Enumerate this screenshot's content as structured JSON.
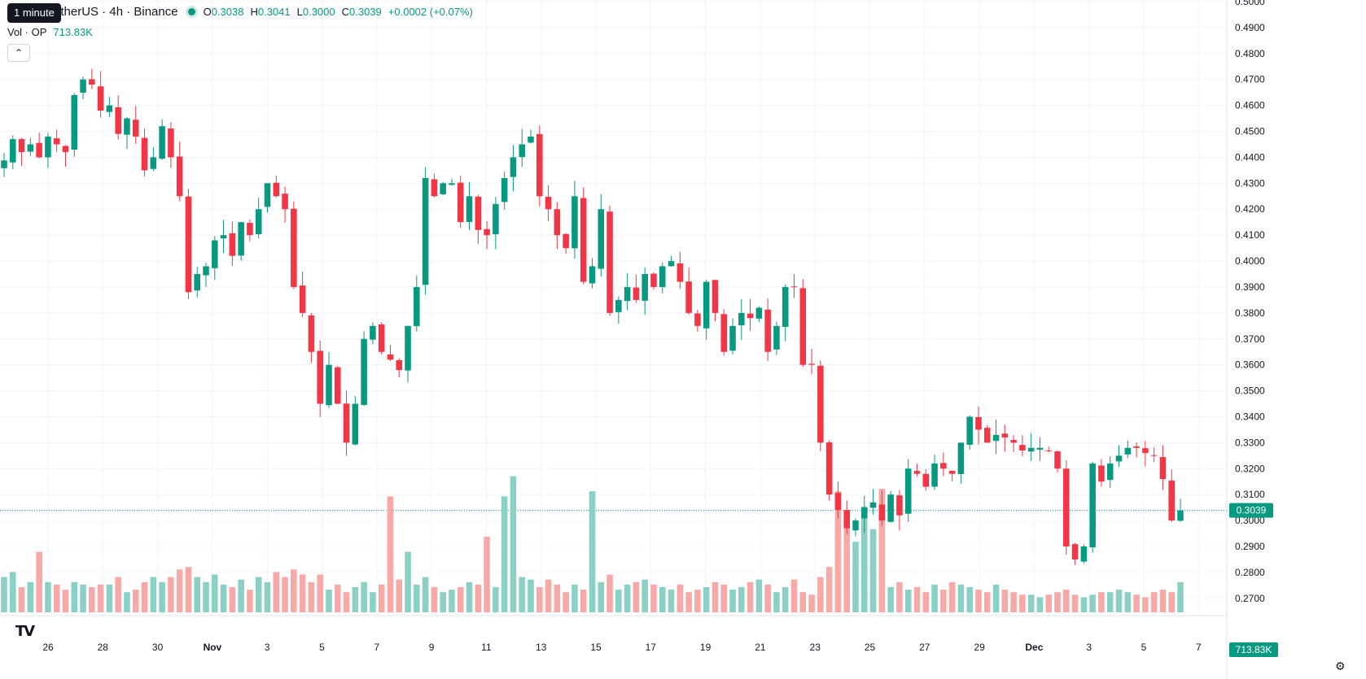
{
  "header": {
    "tooltip": "1 minute",
    "symbol": "OP / TetherUS · 4h · Binance",
    "symbol_visible": "etherUS · 4h · Binance",
    "open_label": "O",
    "open": "0.3038",
    "high_label": "H",
    "high": "0.3041",
    "low_label": "L",
    "low": "0.3000",
    "close_label": "C",
    "close": "0.3039",
    "change": "+0.0002 (+0.07%)"
  },
  "volume_legend": {
    "label": "Vol · OP",
    "value": "713.83K"
  },
  "collapse_icon": "chevron-up-icon",
  "logo": "TV",
  "colors": {
    "up": "#089981",
    "down": "#F23645",
    "up_vol": "#8BD0C4",
    "down_vol": "#F7A9A7",
    "grid": "#F0F3FA",
    "last_price": "#089981"
  },
  "chart_data": {
    "type": "candlestick",
    "interval": "4h",
    "y_axis": {
      "ticks": [
        "0.5000",
        "0.4900",
        "0.4800",
        "0.4700",
        "0.4600",
        "0.4500",
        "0.4400",
        "0.4300",
        "0.4200",
        "0.4100",
        "0.4000",
        "0.3900",
        "0.3800",
        "0.3700",
        "0.3600",
        "0.3500",
        "0.3400",
        "0.3300",
        "0.3200",
        "0.3100",
        "0.3000",
        "0.2900",
        "0.2800",
        "0.2700"
      ],
      "ylim": [
        0.2665,
        0.5005
      ]
    },
    "x_axis": {
      "ticks": [
        "26",
        "28",
        "30",
        "Nov",
        "3",
        "5",
        "7",
        "9",
        "11",
        "13",
        "15",
        "17",
        "19",
        "21",
        "23",
        "25",
        "27",
        "29",
        "Dec",
        "3",
        "5",
        "7"
      ]
    },
    "last_price": "0.3039",
    "last_volume": "713.83K",
    "anchors": [
      0.4388,
      0.447,
      0.442,
      0.445,
      0.44,
      0.448,
      0.445,
      0.442,
      0.464,
      0.47,
      0.468,
      0.458,
      0.46,
      0.449,
      0.455,
      0.448,
      0.435,
      0.44,
      0.452,
      0.44,
      0.425,
      0.388,
      0.395,
      0.398,
      0.408,
      0.41,
      0.402,
      0.415,
      0.41,
      0.42,
      0.43,
      0.425,
      0.42,
      0.39,
      0.38,
      0.365,
      0.345,
      0.36,
      0.345,
      0.33,
      0.345,
      0.37,
      0.375,
      0.365,
      0.362,
      0.358,
      0.375,
      0.39,
      0.432,
      0.425,
      0.43,
      0.43,
      0.415,
      0.425,
      0.412,
      0.41,
      0.422,
      0.432,
      0.44,
      0.445,
      0.448,
      0.425,
      0.42,
      0.41,
      0.405,
      0.425,
      0.392,
      0.398,
      0.42,
      0.38,
      0.385,
      0.39,
      0.385,
      0.395,
      0.39,
      0.398,
      0.4,
      0.392,
      0.38,
      0.375,
      0.392,
      0.38,
      0.365,
      0.375,
      0.38,
      0.378,
      0.382,
      0.365,
      0.375,
      0.39,
      0.39,
      0.36,
      0.36,
      0.33,
      0.31,
      0.304,
      0.297,
      0.3,
      0.305,
      0.307,
      0.3,
      0.31,
      0.302,
      0.32,
      0.318,
      0.313,
      0.322,
      0.32,
      0.318,
      0.33,
      0.34,
      0.335,
      0.33,
      0.333,
      0.332,
      0.33,
      0.327,
      0.328,
      0.328,
      0.327,
      0.32,
      0.29,
      0.285,
      0.29,
      0.322,
      0.315,
      0.322,
      0.325,
      0.328,
      0.328,
      0.326,
      0.325,
      0.316,
      0.3,
      0.3039
    ],
    "volumes": [
      70,
      80,
      50,
      60,
      120,
      60,
      55,
      45,
      60,
      55,
      50,
      55,
      55,
      70,
      40,
      45,
      60,
      70,
      60,
      70,
      85,
      90,
      70,
      60,
      75,
      55,
      50,
      65,
      45,
      70,
      60,
      80,
      70,
      85,
      75,
      60,
      75,
      45,
      55,
      40,
      50,
      60,
      40,
      55,
      50,
      65,
      45,
      55,
      70,
      50,
      40,
      45,
      50,
      60,
      55,
      65,
      50,
      45,
      60,
      70,
      65,
      50,
      65,
      55,
      40,
      55,
      45,
      40,
      60,
      75,
      45,
      55,
      60,
      65,
      55,
      50,
      45,
      55,
      40,
      45,
      50,
      60,
      55,
      45,
      50,
      60,
      65,
      55,
      40,
      50,
      65,
      40,
      35,
      70,
      90,
      240,
      190,
      140,
      85,
      70,
      55,
      50,
      60,
      45,
      50,
      40,
      55,
      45,
      60,
      55,
      50,
      45,
      40,
      55,
      45,
      40,
      35,
      35,
      30,
      35,
      40,
      45,
      35,
      30,
      35,
      40,
      40,
      45,
      40,
      35,
      30,
      40,
      45,
      40,
      60,
      50,
      45,
      20
    ],
    "volume_spikes": {
      "44": 230,
      "46": 120,
      "55": 150,
      "57": 230,
      "58": 270,
      "67": 240,
      "98": 210,
      "99": 165,
      "100": 245
    }
  }
}
